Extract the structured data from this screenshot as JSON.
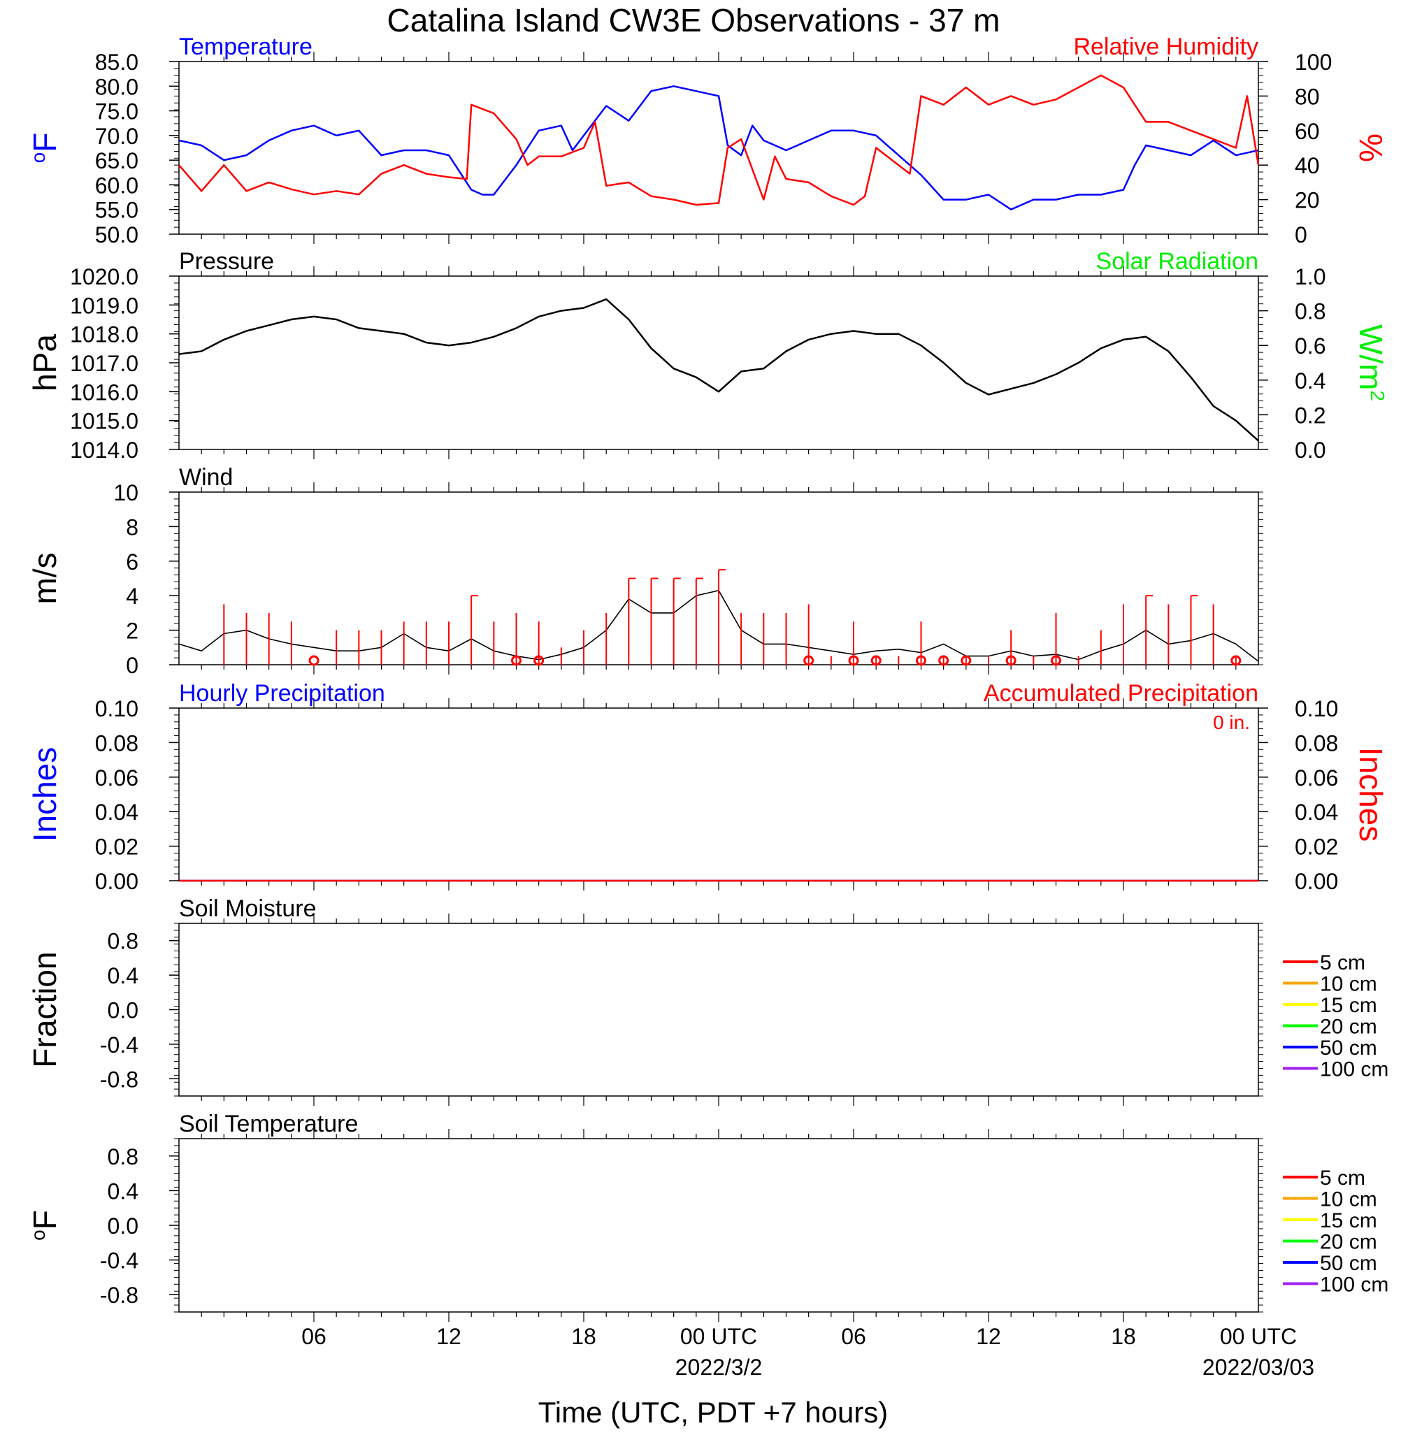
{
  "title": "Catalina Island CW3E Observations - 37 m",
  "x_axis": {
    "label": "Time (UTC, PDT +7 hours)",
    "range_hours": [
      0,
      48
    ],
    "ticks": [
      {
        "h": 6,
        "label": "06",
        "sub": ""
      },
      {
        "h": 12,
        "label": "12",
        "sub": ""
      },
      {
        "h": 18,
        "label": "18",
        "sub": ""
      },
      {
        "h": 24,
        "label": "00 UTC",
        "sub": "2022/3/2"
      },
      {
        "h": 30,
        "label": "06",
        "sub": ""
      },
      {
        "h": 36,
        "label": "12",
        "sub": ""
      },
      {
        "h": 42,
        "label": "18",
        "sub": ""
      },
      {
        "h": 48,
        "label": "00 UTC",
        "sub": "2022/03/03"
      }
    ]
  },
  "colors": {
    "temperature": "#0000ff",
    "humidity": "#ff0000",
    "pressure": "#000000",
    "solar": "#00ee00",
    "wind": "#000000",
    "wind_barb": "#ff0000",
    "hourly_precip": "#0000ff",
    "accum_precip": "#ff0000"
  },
  "chart_data": [
    {
      "type": "line",
      "panel": "temperature-humidity",
      "left_title": "Temperature",
      "right_title": "Relative Humidity",
      "ylabel": "oF",
      "y2label": "%",
      "ylim": [
        50,
        85
      ],
      "y_ticks": [
        "50.0",
        "55.0",
        "60.0",
        "65.0",
        "70.0",
        "75.0",
        "80.0",
        "85.0"
      ],
      "y2lim": [
        0,
        100
      ],
      "y2_ticks": [
        "0",
        "20",
        "40",
        "60",
        "80",
        "100"
      ],
      "series": [
        {
          "name": "Temperature",
          "axis": "left",
          "x": [
            0,
            1,
            2,
            3,
            4,
            5,
            6,
            7,
            8,
            9,
            10,
            11,
            12,
            13,
            13.5,
            14,
            15,
            16,
            17,
            17.5,
            18,
            19,
            20,
            21,
            22,
            23,
            24,
            24.4,
            25,
            25.5,
            26,
            27,
            28,
            29,
            30,
            31,
            32,
            33,
            34,
            35,
            36,
            37,
            38,
            39,
            40,
            41,
            42,
            42.5,
            43,
            44,
            45,
            46,
            47,
            48
          ],
          "values": [
            69,
            68,
            65,
            66,
            69,
            71,
            72,
            70,
            71,
            66,
            67,
            67,
            66,
            59,
            58,
            58,
            64,
            71,
            72,
            67,
            70,
            76,
            73,
            79,
            80,
            79,
            78,
            68,
            66,
            72,
            69,
            67,
            69,
            71,
            71,
            70,
            66,
            62,
            57,
            57,
            58,
            55,
            57,
            57,
            58,
            58,
            59,
            64,
            68,
            67,
            66,
            69,
            66,
            67
          ]
        },
        {
          "name": "Relative Humidity",
          "axis": "right",
          "x": [
            0,
            1,
            2,
            3,
            4,
            5,
            6,
            7,
            8,
            9,
            10,
            11,
            12,
            12.8,
            13,
            14,
            15,
            15.5,
            16,
            17,
            18,
            18.5,
            19,
            20,
            21,
            22,
            23,
            24,
            24.4,
            25,
            26,
            26.5,
            27,
            28,
            29,
            30,
            30.5,
            31,
            32,
            32.5,
            33,
            34,
            35,
            36,
            37,
            38,
            39,
            40,
            41,
            42,
            42.5,
            43,
            44,
            45,
            46,
            47,
            47.5,
            48
          ],
          "values": [
            40,
            25,
            40,
            25,
            30,
            26,
            23,
            25,
            23,
            35,
            40,
            35,
            33,
            32,
            75,
            70,
            55,
            40,
            45,
            45,
            50,
            65,
            28,
            30,
            22,
            20,
            17,
            18,
            50,
            55,
            20,
            45,
            32,
            30,
            22,
            17,
            22,
            50,
            40,
            35,
            80,
            75,
            85,
            75,
            80,
            75,
            78,
            85,
            92,
            85,
            75,
            65,
            65,
            60,
            55,
            50,
            80,
            40
          ]
        }
      ]
    },
    {
      "type": "line",
      "panel": "pressure-solar",
      "left_title": "Pressure",
      "right_title": "Solar Radiation",
      "ylabel": "hPa",
      "y2label": "W/m",
      "y2label_superscript": "2",
      "ylim": [
        1014,
        1020
      ],
      "y_ticks": [
        "1014.0",
        "1015.0",
        "1016.0",
        "1017.0",
        "1018.0",
        "1019.0",
        "1020.0"
      ],
      "y2lim": [
        0,
        1
      ],
      "y2_ticks": [
        "0.0",
        "0.2",
        "0.4",
        "0.6",
        "0.8",
        "1.0"
      ],
      "series": [
        {
          "name": "Pressure",
          "axis": "left",
          "x": [
            0,
            1,
            2,
            3,
            4,
            5,
            6,
            7,
            8,
            9,
            10,
            11,
            12,
            13,
            14,
            15,
            16,
            17,
            18,
            19,
            20,
            21,
            22,
            23,
            24,
            25,
            26,
            27,
            28,
            29,
            30,
            31,
            32,
            33,
            34,
            35,
            36,
            37,
            38,
            39,
            40,
            41,
            42,
            43,
            44,
            45,
            46,
            47,
            48
          ],
          "values": [
            1017.3,
            1017.4,
            1017.8,
            1018.1,
            1018.3,
            1018.5,
            1018.6,
            1018.5,
            1018.2,
            1018.1,
            1018.0,
            1017.7,
            1017.6,
            1017.7,
            1017.9,
            1018.2,
            1018.6,
            1018.8,
            1018.9,
            1019.2,
            1018.5,
            1017.5,
            1016.8,
            1016.5,
            1016.0,
            1016.7,
            1016.8,
            1017.4,
            1017.8,
            1018.0,
            1018.1,
            1018.0,
            1018.0,
            1017.6,
            1017.0,
            1016.3,
            1015.9,
            1016.1,
            1016.3,
            1016.6,
            1017.0,
            1017.5,
            1017.8,
            1017.9,
            1017.4,
            1016.5,
            1015.5,
            1015.0,
            1014.3
          ]
        }
      ]
    },
    {
      "type": "line",
      "panel": "wind",
      "left_title": "Wind",
      "ylabel": "m/s",
      "ylim": [
        0,
        10
      ],
      "y_ticks": [
        "0",
        "2",
        "4",
        "6",
        "8",
        "10"
      ],
      "series": [
        {
          "name": "Wind",
          "axis": "left",
          "x": [
            0,
            1,
            2,
            3,
            4,
            5,
            6,
            7,
            8,
            9,
            10,
            11,
            12,
            13,
            14,
            15,
            16,
            17,
            18,
            19,
            20,
            21,
            22,
            23,
            24,
            25,
            26,
            27,
            28,
            29,
            30,
            31,
            32,
            33,
            34,
            35,
            36,
            37,
            38,
            39,
            40,
            41,
            42,
            43,
            44,
            45,
            46,
            47,
            48
          ],
          "values": [
            1.2,
            0.8,
            1.8,
            2.0,
            1.5,
            1.2,
            1.0,
            0.8,
            0.8,
            1.0,
            1.8,
            1.0,
            0.8,
            1.5,
            0.8,
            0.5,
            0.3,
            0.6,
            1.0,
            2.0,
            3.8,
            3.0,
            3.0,
            4.0,
            4.3,
            2.0,
            1.2,
            1.2,
            1.0,
            0.8,
            0.6,
            0.8,
            0.9,
            0.7,
            1.2,
            0.5,
            0.5,
            0.8,
            0.5,
            0.6,
            0.3,
            0.8,
            1.2,
            2.0,
            1.2,
            1.4,
            1.8,
            1.2,
            0.2
          ]
        }
      ],
      "barbs": {
        "x": [
          2,
          3,
          4,
          5,
          7,
          8,
          9,
          10,
          11,
          12,
          13,
          14,
          15,
          16,
          17,
          18,
          19,
          20,
          21,
          22,
          23,
          24,
          25,
          26,
          27,
          28,
          29,
          30,
          31,
          32,
          33,
          34,
          35,
          36,
          37,
          38,
          39,
          40,
          41,
          42,
          43,
          44,
          45,
          46,
          47
        ],
        "speeds": [
          3.5,
          3.0,
          3.0,
          2.5,
          2.0,
          2.0,
          2.0,
          2.5,
          2.5,
          2.5,
          4.0,
          2.5,
          3.0,
          2.5,
          1.0,
          2.0,
          3.0,
          5.0,
          5.0,
          5.0,
          5.0,
          5.5,
          3.0,
          3.0,
          3.0,
          3.5,
          0.5,
          2.5,
          0.5,
          0.5,
          2.5,
          0.5,
          0.5,
          0.5,
          2.0,
          0.5,
          3.0,
          0.5,
          2.0,
          3.5,
          4.0,
          3.5,
          4.0,
          3.5,
          0.5
        ],
        "calm_x": [
          6,
          15,
          16,
          28,
          30,
          31,
          33,
          34,
          35,
          37,
          39,
          47
        ]
      }
    },
    {
      "type": "line",
      "panel": "precipitation",
      "left_title": "Hourly Precipitation",
      "right_title": "Accumulated Precipitation",
      "total_label": "0 in.",
      "ylabel": "Inches",
      "y2label": "Inches",
      "ylim": [
        0,
        0.1
      ],
      "y_ticks": [
        "0.00",
        "0.02",
        "0.04",
        "0.06",
        "0.08",
        "0.10"
      ],
      "y2lim": [
        0,
        0.1
      ],
      "y2_ticks": [
        "0.00",
        "0.02",
        "0.04",
        "0.06",
        "0.08",
        "0.10"
      ],
      "series": [
        {
          "name": "Hourly Precipitation",
          "axis": "left",
          "x": [
            0,
            48
          ],
          "values": [
            0,
            0
          ]
        },
        {
          "name": "Accumulated Precipitation",
          "axis": "right",
          "x": [
            0,
            48
          ],
          "values": [
            0,
            0
          ]
        }
      ]
    },
    {
      "type": "line",
      "panel": "soil-moisture",
      "left_title": "Soil Moisture",
      "ylabel": "Fraction",
      "ylim": [
        -1,
        1
      ],
      "y_ticks": [
        "-0.8",
        "-0.4",
        "0.0",
        "0.4",
        "0.8"
      ],
      "y_tick_values": [
        -0.8,
        -0.4,
        0,
        0.4,
        0.8
      ],
      "legend": [
        {
          "label": "5 cm",
          "color": "#ff0000"
        },
        {
          "label": "10 cm",
          "color": "#ffa500"
        },
        {
          "label": "15 cm",
          "color": "#ffff00"
        },
        {
          "label": "20 cm",
          "color": "#00ff00"
        },
        {
          "label": "50 cm",
          "color": "#0000ff"
        },
        {
          "label": "100 cm",
          "color": "#a020f0"
        }
      ],
      "series": []
    },
    {
      "type": "line",
      "panel": "soil-temperature",
      "left_title": "Soil Temperature",
      "ylabel": "oF",
      "ylim": [
        -1,
        1
      ],
      "y_ticks": [
        "-0.8",
        "-0.4",
        "0.0",
        "0.4",
        "0.8"
      ],
      "y_tick_values": [
        -0.8,
        -0.4,
        0,
        0.4,
        0.8
      ],
      "legend": [
        {
          "label": "5 cm",
          "color": "#ff0000"
        },
        {
          "label": "10 cm",
          "color": "#ffa500"
        },
        {
          "label": "15 cm",
          "color": "#ffff00"
        },
        {
          "label": "20 cm",
          "color": "#00ff00"
        },
        {
          "label": "50 cm",
          "color": "#0000ff"
        },
        {
          "label": "100 cm",
          "color": "#a020f0"
        }
      ],
      "series": []
    }
  ]
}
